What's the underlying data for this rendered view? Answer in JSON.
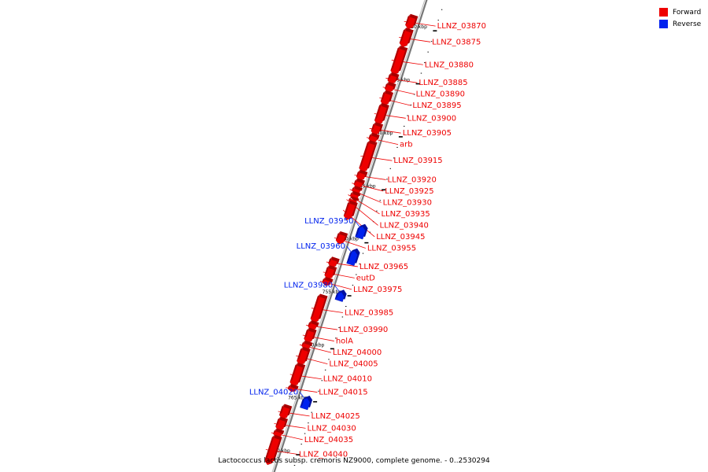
{
  "caption": "Lactococcus lactis subsp. cremoris NZ9000, complete genome. - 0..2530294",
  "legend": [
    {
      "label": "Forward",
      "color": "#ee0000"
    },
    {
      "label": "Reverse",
      "color": "#0022ee"
    }
  ],
  "scale": {
    "unit": "kbp",
    "ticks": [
      {
        "kbp": 730,
        "label": "730 kbp"
      },
      {
        "kbp": 735,
        "label": "735 kbp"
      },
      {
        "kbp": 740,
        "label": "740 kbp"
      },
      {
        "kbp": 745,
        "label": "745 kbp"
      },
      {
        "kbp": 750,
        "label": "750 kbp"
      },
      {
        "kbp": 755,
        "label": "755 kbp"
      },
      {
        "kbp": 760,
        "label": "760 kbp"
      },
      {
        "kbp": 765,
        "label": "765 kbp"
      },
      {
        "kbp": 770,
        "label": "770 kbp"
      }
    ]
  },
  "genes": [
    {
      "name": "LLNZ_03870",
      "strand": "forward",
      "start": 729.5,
      "end": 730.6
    },
    {
      "name": "LLNZ_03875",
      "strand": "forward",
      "start": 730.8,
      "end": 732.3
    },
    {
      "name": "LLNZ_03880",
      "strand": "forward",
      "start": 732.5,
      "end": 734.9
    },
    {
      "name": "LLNZ_03885",
      "strand": "forward",
      "start": 735.0,
      "end": 735.8
    },
    {
      "name": "LLNZ_03890",
      "strand": "forward",
      "start": 735.9,
      "end": 736.6
    },
    {
      "name": "LLNZ_03895",
      "strand": "forward",
      "start": 736.7,
      "end": 737.8
    },
    {
      "name": "LLNZ_03900",
      "strand": "forward",
      "start": 737.9,
      "end": 739.6
    },
    {
      "name": "LLNZ_03905",
      "strand": "forward",
      "start": 739.7,
      "end": 740.6
    },
    {
      "name": "arb",
      "strand": "forward",
      "start": 740.7,
      "end": 741.3
    },
    {
      "name": "LLNZ_03915",
      "strand": "forward",
      "start": 741.4,
      "end": 744.1
    },
    {
      "name": "LLNZ_03920",
      "strand": "forward",
      "start": 744.2,
      "end": 744.9
    },
    {
      "name": "LLNZ_03925",
      "strand": "forward",
      "start": 745.0,
      "end": 745.6
    },
    {
      "name": "LLNZ_03930",
      "strand": "forward",
      "start": 745.7,
      "end": 746.1
    },
    {
      "name": "LLNZ_03935",
      "strand": "forward",
      "start": 746.2,
      "end": 746.6
    },
    {
      "name": "LLNZ_03940",
      "strand": "forward",
      "start": 746.7,
      "end": 747.0
    },
    {
      "name": "LLNZ_03945",
      "strand": "forward",
      "start": 747.1,
      "end": 748.6
    },
    {
      "name": "LLNZ_03950",
      "strand": "reverse",
      "start": 748.7,
      "end": 749.8
    },
    {
      "name": "LLNZ_03955",
      "strand": "forward",
      "start": 750.0,
      "end": 750.9
    },
    {
      "name": "LLNZ_03960",
      "strand": "reverse",
      "start": 751.0,
      "end": 752.3
    },
    {
      "name": "LLNZ_03965",
      "strand": "forward",
      "start": 752.4,
      "end": 753.1
    },
    {
      "name": "eutD",
      "strand": "forward",
      "start": 753.2,
      "end": 754.2
    },
    {
      "name": "LLNZ_03975",
      "strand": "forward",
      "start": 754.3,
      "end": 754.8
    },
    {
      "name": "LLNZ_03980",
      "strand": "reverse",
      "start": 754.9,
      "end": 755.7
    },
    {
      "name": "LLNZ_03985",
      "strand": "forward",
      "start": 755.9,
      "end": 758.3
    },
    {
      "name": "LLNZ_03990",
      "strand": "forward",
      "start": 758.4,
      "end": 759.0
    },
    {
      "name": "holA",
      "strand": "forward",
      "start": 759.1,
      "end": 760.2
    },
    {
      "name": "LLNZ_04000",
      "strand": "forward",
      "start": 760.3,
      "end": 760.8
    },
    {
      "name": "LLNZ_04005",
      "strand": "forward",
      "start": 760.9,
      "end": 762.3
    },
    {
      "name": "LLNZ_04010",
      "strand": "forward",
      "start": 762.4,
      "end": 764.3
    },
    {
      "name": "LLNZ_04015",
      "strand": "forward",
      "start": 764.4,
      "end": 764.8
    },
    {
      "name": "LLNZ_04020",
      "strand": "reverse",
      "start": 764.9,
      "end": 765.9
    },
    {
      "name": "LLNZ_04025",
      "strand": "forward",
      "start": 766.3,
      "end": 767.4
    },
    {
      "name": "LLNZ_04030",
      "strand": "forward",
      "start": 767.5,
      "end": 768.5
    },
    {
      "name": "LLNZ_04035",
      "strand": "forward",
      "start": 768.6,
      "end": 769.1
    },
    {
      "name": "LLNZ_04040",
      "strand": "forward",
      "start": 769.2,
      "end": 771.7
    }
  ]
}
